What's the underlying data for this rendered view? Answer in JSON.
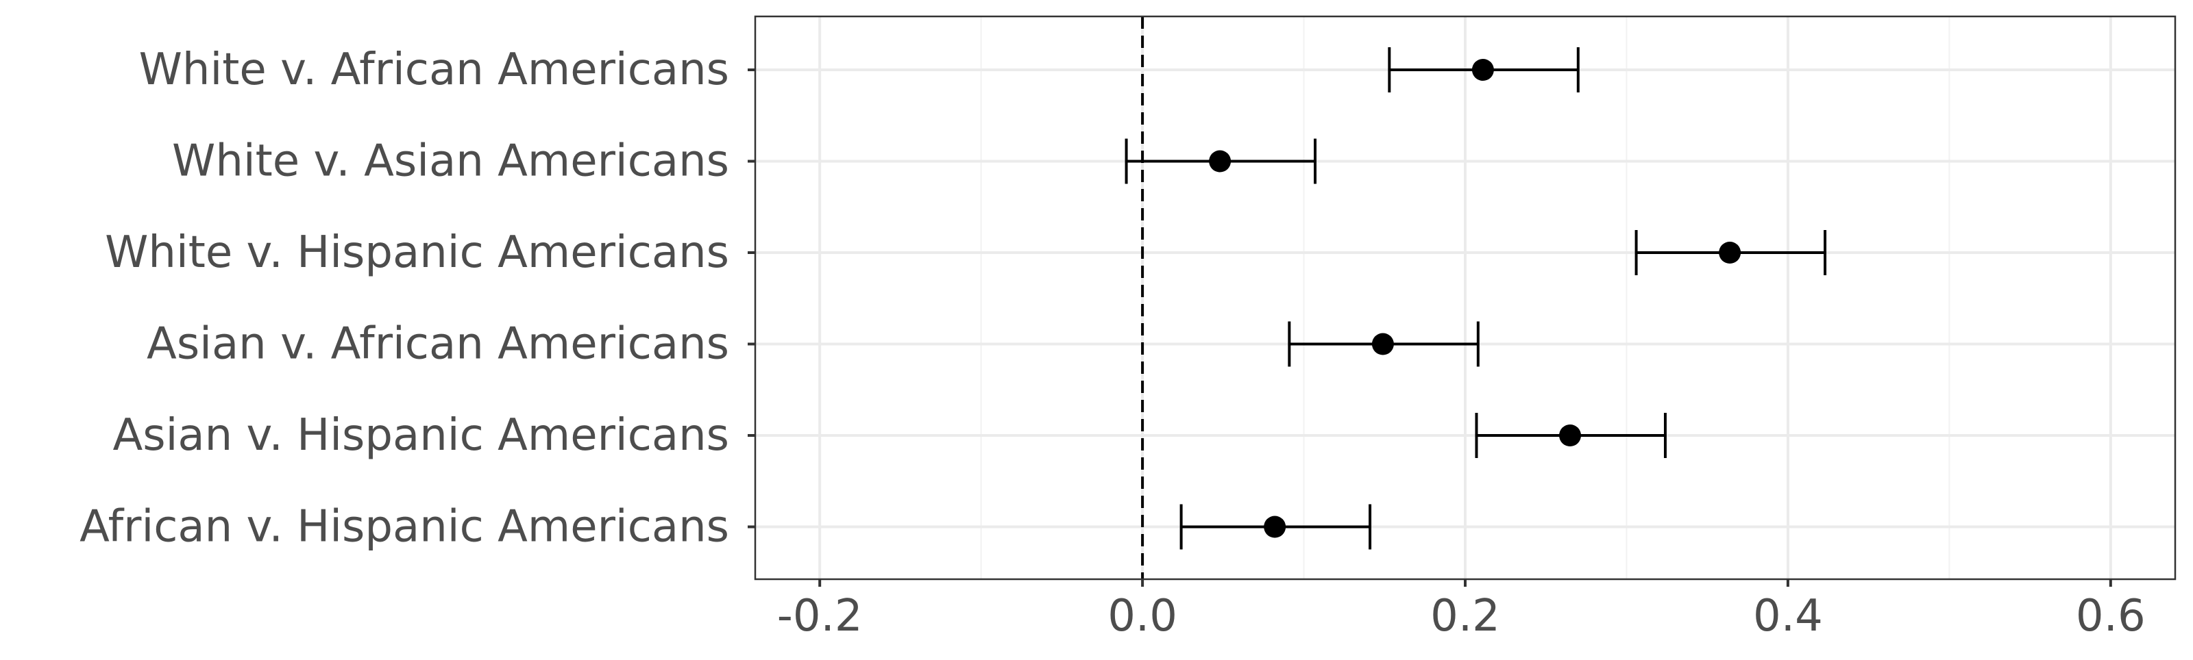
{
  "chart_data": {
    "type": "scatter",
    "subtype": "coefficient-plot-with-error-bars",
    "title": "",
    "xlabel": "",
    "ylabel": "",
    "xlim": [
      -0.24,
      0.64
    ],
    "x_ticks": [
      -0.2,
      0.0,
      0.2,
      0.4,
      0.6
    ],
    "x_tick_labels": [
      "-0.2",
      "0.0",
      "0.2",
      "0.4",
      "0.6"
    ],
    "reference_line": {
      "x": 0.0,
      "style": "dashed"
    },
    "grid": true,
    "legend": "none",
    "categories": [
      "White v. African Americans",
      "White v. Asian Americans",
      "White v. Hispanic Americans",
      "Asian v. African Americans",
      "Asian v. Hispanic Americans",
      "African v. Hispanic Americans"
    ],
    "estimates": [
      {
        "label": "White v. African Americans",
        "value": 0.211,
        "lower": 0.153,
        "upper": 0.27
      },
      {
        "label": "White v. Asian Americans",
        "value": 0.048,
        "lower": -0.01,
        "upper": 0.107
      },
      {
        "label": "White v. Hispanic Americans",
        "value": 0.364,
        "lower": 0.306,
        "upper": 0.423
      },
      {
        "label": "Asian v. African Americans",
        "value": 0.149,
        "lower": 0.091,
        "upper": 0.208
      },
      {
        "label": "Asian v. Hispanic Americans",
        "value": 0.265,
        "lower": 0.207,
        "upper": 0.324
      },
      {
        "label": "African v. Hispanic Americans",
        "value": 0.082,
        "lower": 0.024,
        "upper": 0.141
      }
    ],
    "colors": {
      "panel_border": "#333333",
      "grid_major": "#ebebeb",
      "grid_minor": "#f2f2f2",
      "text": "#4d4d4d",
      "mark": "#000000"
    }
  }
}
